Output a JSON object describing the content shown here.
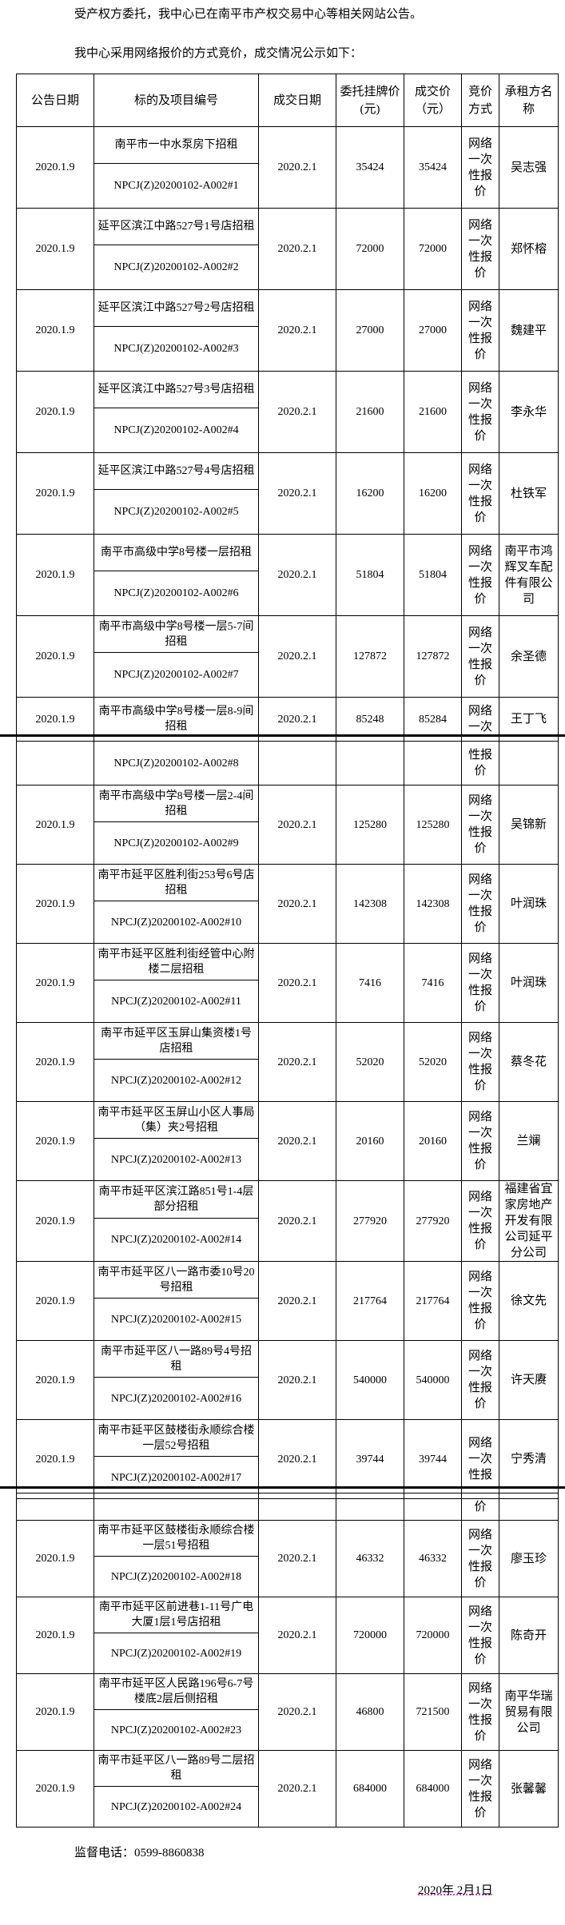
{
  "intro": {
    "line1": "受产权方委托，我中心已在南平市产权交易中心等相关网站公告。",
    "line2": "我中心采用网络报价的方式竞价，成交情况公示如下："
  },
  "table": {
    "headers": [
      "公告日期",
      "标的及项目编号",
      "成交日期",
      "委托挂牌价(元)",
      "成交价（元）",
      "竞价方式",
      "承租方名称"
    ],
    "rows": [
      {
        "date": "2020.1.9",
        "title": "南平市一中水泵房下招租",
        "code": "NPCJ(Z)20200102-A002#1",
        "deal_date": "2020.2.1",
        "list_price": "35424",
        "deal_price": "35424",
        "method": "网络一次性报价",
        "lessee": "吴志强"
      },
      {
        "date": "2020.1.9",
        "title": "延平区滨江中路527号1号店招租",
        "code": "NPCJ(Z)20200102-A002#2",
        "deal_date": "2020.2.1",
        "list_price": "72000",
        "deal_price": "72000",
        "method": "网络一次性报价",
        "lessee": "郑怀榕"
      },
      {
        "date": "2020.1.9",
        "title": "延平区滨江中路527号2号店招租",
        "code": "NPCJ(Z)20200102-A002#3",
        "deal_date": "2020.2.1",
        "list_price": "27000",
        "deal_price": "27000",
        "method": "网络一次性报价",
        "lessee": "魏建平"
      },
      {
        "date": "2020.1.9",
        "title": "延平区滨江中路527号3号店招租",
        "code": "NPCJ(Z)20200102-A002#4",
        "deal_date": "2020.2.1",
        "list_price": "21600",
        "deal_price": "21600",
        "method": "网络一次性报价",
        "lessee": "李永华"
      },
      {
        "date": "2020.1.9",
        "title": "延平区滨江中路527号4号店招租",
        "code": "NPCJ(Z)20200102-A002#5",
        "deal_date": "2020.2.1",
        "list_price": "16200",
        "deal_price": "16200",
        "method": "网络一次性报价",
        "lessee": "杜铁军"
      },
      {
        "date": "2020.1.9",
        "title": "南平市高级中学8号楼一层招租",
        "code": "NPCJ(Z)20200102-A002#6",
        "deal_date": "2020.2.1",
        "list_price": "51804",
        "deal_price": "51804",
        "method": "网络一次性报价",
        "lessee": "南平市鸿辉叉车配件有限公司"
      },
      {
        "date": "2020.1.9",
        "title": "南平市高级中学8号楼一层5-7间招租",
        "code": "NPCJ(Z)20200102-A002#7",
        "deal_date": "2020.2.1",
        "list_price": "127872",
        "deal_price": "127872",
        "method": "网络一次性报价",
        "lessee": "余圣德"
      },
      {
        "date": "2020.1.9",
        "title": "南平市高级中学8号楼一层8-9间招租",
        "code": "NPCJ(Z)20200102-A002#8",
        "deal_date": "2020.2.1",
        "list_price": "85248",
        "deal_price": "85284",
        "method": "网络一次性报价",
        "method_split": [
          "网络一次",
          "性报价"
        ],
        "lessee": "王丁飞"
      },
      {
        "date": "2020.1.9",
        "title": "南平市高级中学8号楼一层2-4间招租",
        "code": "NPCJ(Z)20200102-A002#9",
        "deal_date": "2020.2.1",
        "list_price": "125280",
        "deal_price": "125280",
        "method": "网络一次性报价",
        "lessee": "吴锦新"
      },
      {
        "date": "2020.1.9",
        "title": "南平市延平区胜利街253号6号店招租",
        "code": "NPCJ(Z)20200102-A002#10",
        "deal_date": "2020.2.1",
        "list_price": "142308",
        "deal_price": "142308",
        "method": "网络一次性报价",
        "lessee": "叶润珠"
      },
      {
        "date": "2020.1.9",
        "title": "南平市延平区胜利街经管中心附楼二层招租",
        "code": "NPCJ(Z)20200102-A002#11",
        "deal_date": "2020.2.1",
        "list_price": "7416",
        "deal_price": "7416",
        "method": "网络一次性报价",
        "lessee": "叶润珠"
      },
      {
        "date": "2020.1.9",
        "title": "南平市延平区玉屏山集资楼1号店招租",
        "code": "NPCJ(Z)20200102-A002#12",
        "deal_date": "2020.2.1",
        "list_price": "52020",
        "deal_price": "52020",
        "method": "网络一次性报价",
        "lessee": "蔡冬花"
      },
      {
        "date": "2020.1.9",
        "title": "南平市延平区玉屏山小区人事局（集）夹2号招租",
        "code": "NPCJ(Z)20200102-A002#13",
        "deal_date": "2020.2.1",
        "list_price": "20160",
        "deal_price": "20160",
        "method": "网络一次性报价",
        "lessee": "兰斓"
      },
      {
        "date": "2020.1.9",
        "title": "南平市延平区滨江路851号1-4层部分招租",
        "code": "NPCJ(Z)20200102-A002#14",
        "deal_date": "2020.2.1",
        "list_price": "277920",
        "deal_price": "277920",
        "method": "网络一次性报价",
        "lessee": "福建省宜家房地产开发有限公司延平分公司"
      },
      {
        "date": "2020.1.9",
        "title": "南平市延平区八一路市委10号20号招租",
        "code": "NPCJ(Z)20200102-A002#15",
        "deal_date": "2020.2.1",
        "list_price": "217764",
        "deal_price": "217764",
        "method": "网络一次性报价",
        "lessee": "徐文先"
      },
      {
        "date": "2020.1.9",
        "title": "南平市延平区八一路89号4号招租",
        "code": "NPCJ(Z)20200102-A002#16",
        "deal_date": "2020.2.1",
        "list_price": "540000",
        "deal_price": "540000",
        "method": "网络一次性报价",
        "lessee": "许天赓"
      },
      {
        "date": "2020.1.9",
        "title": "南平市延平区鼓楼街永顺综合楼一层52号招租",
        "code": "NPCJ(Z)20200102-A002#17",
        "deal_date": "2020.2.1",
        "list_price": "39744",
        "deal_price": "39744",
        "method": "网络一次性报价",
        "method_split": [
          "网络一次性报",
          "价"
        ],
        "lessee": "宁秀清"
      },
      {
        "date": "2020.1.9",
        "title": "南平市延平区鼓楼街永顺综合楼一层51号招租",
        "code": "NPCJ(Z)20200102-A002#18",
        "deal_date": "2020.2.1",
        "list_price": "46332",
        "deal_price": "46332",
        "method": "网络一次性报价",
        "lessee": "廖玉珍"
      },
      {
        "date": "2020.1.9",
        "title": "南平市延平区前进巷1-11号广电大厦1层1号店招租",
        "code": "NPCJ(Z)20200102-A002#19",
        "deal_date": "2020.2.1",
        "list_price": "720000",
        "deal_price": "720000",
        "method": "网络一次性报价",
        "lessee": "陈奇开"
      },
      {
        "date": "2020.1.9",
        "title": "南平市延平区人民路196号6-7号楼底2层后侧招租",
        "code": "NPCJ(Z)20200102-A002#23",
        "deal_date": "2020.2.1",
        "list_price": "46800",
        "deal_price": "721500",
        "method": "网络一次性报价",
        "lessee": "南平华瑞贸易有限公司"
      },
      {
        "date": "2020.1.9",
        "title": "南平市延平区八一路89号二层招租",
        "code": "NPCJ(Z)20200102-A002#24",
        "deal_date": "2020.2.1",
        "list_price": "684000",
        "deal_price": "684000",
        "method": "网络一次性报价",
        "lessee": "张馨馨"
      }
    ]
  },
  "footer": {
    "phone": "监督电话：0599-8860838",
    "date": "2020年 2月1日"
  }
}
